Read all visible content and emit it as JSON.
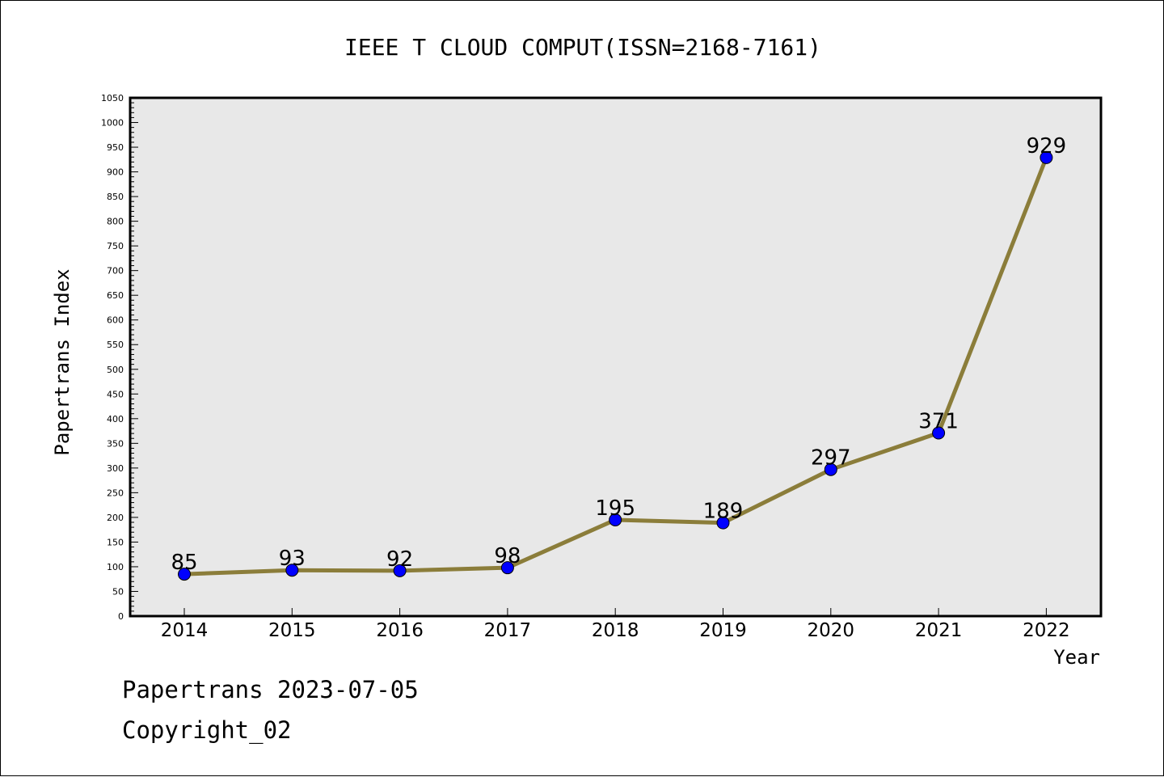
{
  "chart_data": {
    "type": "line",
    "title": "IEEE T CLOUD COMPUT(ISSN=2168-7161)",
    "xlabel": "Year",
    "ylabel": "Papertrans Index",
    "x": [
      "2014",
      "2015",
      "2016",
      "2017",
      "2018",
      "2019",
      "2020",
      "2021",
      "2022"
    ],
    "series": [
      {
        "values": [
          85,
          93,
          92,
          98,
          195,
          189,
          297,
          371,
          929
        ],
        "data_labels": [
          "85",
          "93",
          "92",
          "98",
          "195",
          "189",
          "297",
          "371",
          "929"
        ],
        "line_color": "#8b7d3a",
        "marker_color": "#0000ff"
      }
    ],
    "ylim": [
      0,
      1050
    ],
    "y_ticks": [
      "0",
      "50",
      "100",
      "150",
      "200",
      "250",
      "300",
      "350",
      "400",
      "450",
      "500",
      "550",
      "600",
      "650",
      "700",
      "750",
      "800",
      "850",
      "900",
      "950",
      "1000",
      "1050"
    ],
    "grid": false,
    "plot_background": "#e8e8e8"
  },
  "footer": {
    "date_text": "Papertrans 2023-07-05",
    "copyright_text": "Copyright_02"
  }
}
